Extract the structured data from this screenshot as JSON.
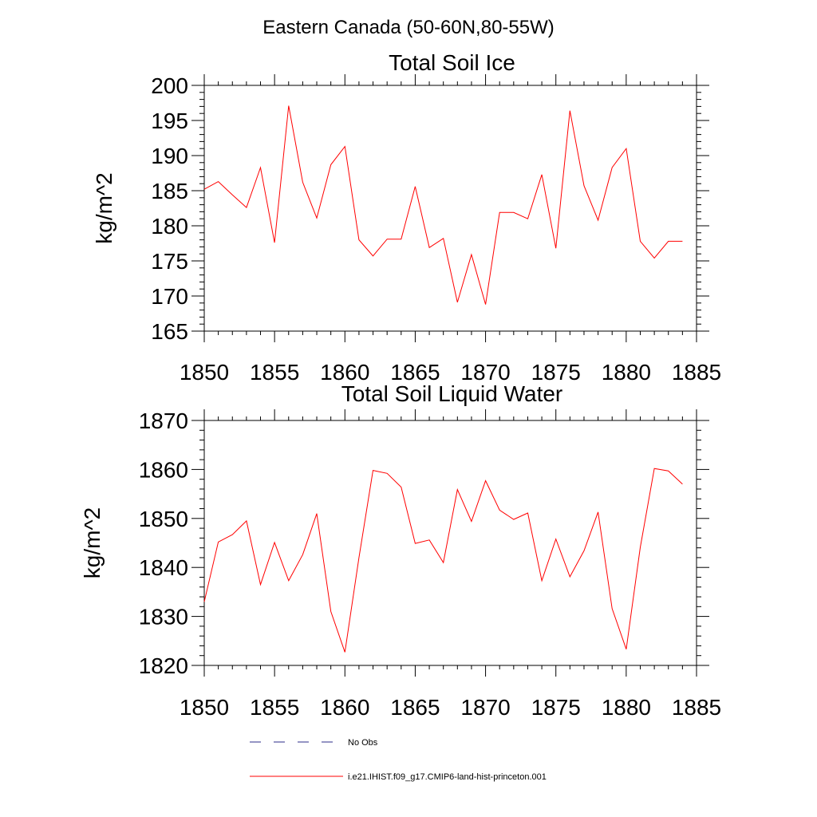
{
  "suptitle": "Eastern Canada (50-60N,80-55W)",
  "colors": {
    "model": "#ff0000",
    "obs": "#2b2b8a",
    "axis": "#000000"
  },
  "legend": {
    "obs_label": "No Obs",
    "model_label": "i.e21.IHIST.f09_g17.CMIP6-land-hist-princeton.001"
  },
  "chart_data": [
    {
      "type": "line",
      "title": "Total Soil Ice",
      "ylabel": "kg/m^2",
      "xlabel": "",
      "xlim": [
        1850,
        1885
      ],
      "ylim": [
        165,
        200
      ],
      "xticks": [
        1850,
        1855,
        1860,
        1865,
        1870,
        1875,
        1880,
        1885
      ],
      "yticks": [
        165,
        170,
        175,
        180,
        185,
        190,
        195,
        200
      ],
      "grid": false,
      "series": [
        {
          "name": "i.e21.IHIST.f09_g17.CMIP6-land-hist-princeton.001",
          "color": "#ff0000",
          "x": [
            1850,
            1851,
            1852,
            1853,
            1854,
            1855,
            1856,
            1857,
            1858,
            1859,
            1860,
            1861,
            1862,
            1863,
            1864,
            1865,
            1866,
            1867,
            1868,
            1869,
            1870,
            1871,
            1872,
            1873,
            1874,
            1875,
            1876,
            1877,
            1878,
            1879,
            1880,
            1881,
            1882,
            1883,
            1884
          ],
          "y": [
            185.2,
            186.3,
            184.4,
            182.6,
            188.3,
            177.6,
            197.1,
            186.2,
            181.1,
            188.7,
            191.3,
            178.0,
            175.7,
            178.1,
            178.1,
            185.6,
            176.9,
            178.2,
            169.1,
            175.9,
            168.8,
            181.9,
            181.9,
            181.0,
            187.3,
            176.8,
            196.4,
            185.7,
            180.8,
            188.3,
            191.0,
            177.8,
            175.4,
            177.8,
            177.8
          ]
        }
      ]
    },
    {
      "type": "line",
      "title": "Total Soil Liquid Water",
      "ylabel": "kg/m^2",
      "xlabel": "",
      "xlim": [
        1850,
        1885
      ],
      "ylim": [
        1820,
        1870
      ],
      "xticks": [
        1850,
        1855,
        1860,
        1865,
        1870,
        1875,
        1880,
        1885
      ],
      "yticks": [
        1820,
        1830,
        1840,
        1850,
        1860,
        1870
      ],
      "grid": false,
      "series": [
        {
          "name": "i.e21.IHIST.f09_g17.CMIP6-land-hist-princeton.001",
          "color": "#ff0000",
          "x": [
            1850,
            1851,
            1852,
            1853,
            1854,
            1855,
            1856,
            1857,
            1858,
            1859,
            1860,
            1861,
            1862,
            1863,
            1864,
            1865,
            1866,
            1867,
            1868,
            1869,
            1870,
            1871,
            1872,
            1873,
            1874,
            1875,
            1876,
            1877,
            1878,
            1879,
            1880,
            1881,
            1882,
            1883,
            1884
          ],
          "y": [
            1833.0,
            1845.2,
            1846.7,
            1849.5,
            1836.5,
            1845.1,
            1837.3,
            1842.6,
            1851.0,
            1831.0,
            1822.7,
            1842.0,
            1859.8,
            1859.2,
            1856.4,
            1844.9,
            1845.6,
            1841.0,
            1855.9,
            1849.4,
            1857.7,
            1851.7,
            1849.8,
            1851.1,
            1837.3,
            1845.8,
            1838.1,
            1843.4,
            1851.3,
            1831.6,
            1823.3,
            1844.1,
            1860.2,
            1859.7,
            1857.0
          ]
        }
      ]
    }
  ]
}
